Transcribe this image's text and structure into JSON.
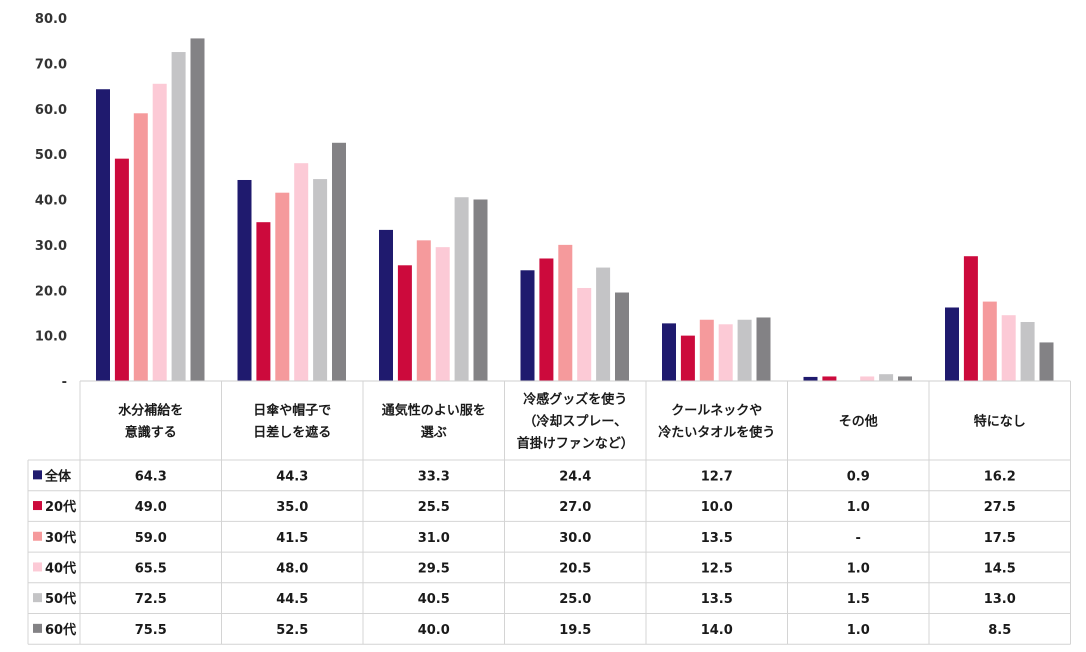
{
  "chart_data": {
    "type": "bar",
    "categories": [
      [
        "水分補給を",
        "意識する"
      ],
      [
        "日傘や帽子で",
        "日差しを遮る"
      ],
      [
        "通気性のよい服を",
        "選ぶ"
      ],
      [
        "冷感グッズを使う",
        "（冷却スプレー、",
        "首掛けファンなど）"
      ],
      [
        "クールネックや",
        "冷たいタオルを使う"
      ],
      [
        "その他"
      ],
      [
        "特になし"
      ]
    ],
    "series": [
      {
        "name": "全体",
        "color": "#1f1a6e",
        "values": [
          64.3,
          44.3,
          33.3,
          24.4,
          12.7,
          0.9,
          16.2
        ],
        "labels": [
          "64.3",
          "44.3",
          "33.3",
          "24.4",
          "12.7",
          "0.9",
          "16.2"
        ]
      },
      {
        "name": "20代",
        "color": "#cc0a3c",
        "values": [
          49.0,
          35.0,
          25.5,
          27.0,
          10.0,
          1.0,
          27.5
        ],
        "labels": [
          "49.0",
          "35.0",
          "25.5",
          "27.0",
          "10.0",
          "1.0",
          "27.5"
        ]
      },
      {
        "name": "30代",
        "color": "#f59a9c",
        "values": [
          59.0,
          41.5,
          31.0,
          30.0,
          13.5,
          0,
          17.5
        ],
        "labels": [
          "59.0",
          "41.5",
          "31.0",
          "30.0",
          "13.5",
          "-",
          "17.5"
        ]
      },
      {
        "name": "40代",
        "color": "#fccad6",
        "values": [
          65.5,
          48.0,
          29.5,
          20.5,
          12.5,
          1.0,
          14.5
        ],
        "labels": [
          "65.5",
          "48.0",
          "29.5",
          "20.5",
          "12.5",
          "1.0",
          "14.5"
        ]
      },
      {
        "name": "50代",
        "color": "#c4c4c6",
        "values": [
          72.5,
          44.5,
          40.5,
          25.0,
          13.5,
          1.5,
          13.0
        ],
        "labels": [
          "72.5",
          "44.5",
          "40.5",
          "25.0",
          "13.5",
          "1.5",
          "13.0"
        ]
      },
      {
        "name": "60代",
        "color": "#838285",
        "values": [
          75.5,
          52.5,
          40.0,
          19.5,
          14.0,
          1.0,
          8.5
        ],
        "labels": [
          "75.5",
          "52.5",
          "40.0",
          "19.5",
          "14.0",
          "1.0",
          "8.5"
        ]
      }
    ],
    "y_ticks": [
      "-",
      "10.0",
      "20.0",
      "30.0",
      "40.0",
      "50.0",
      "60.0",
      "70.0",
      "80.0"
    ],
    "ylim": [
      0,
      80
    ],
    "grid": false,
    "legend": "data-table"
  }
}
